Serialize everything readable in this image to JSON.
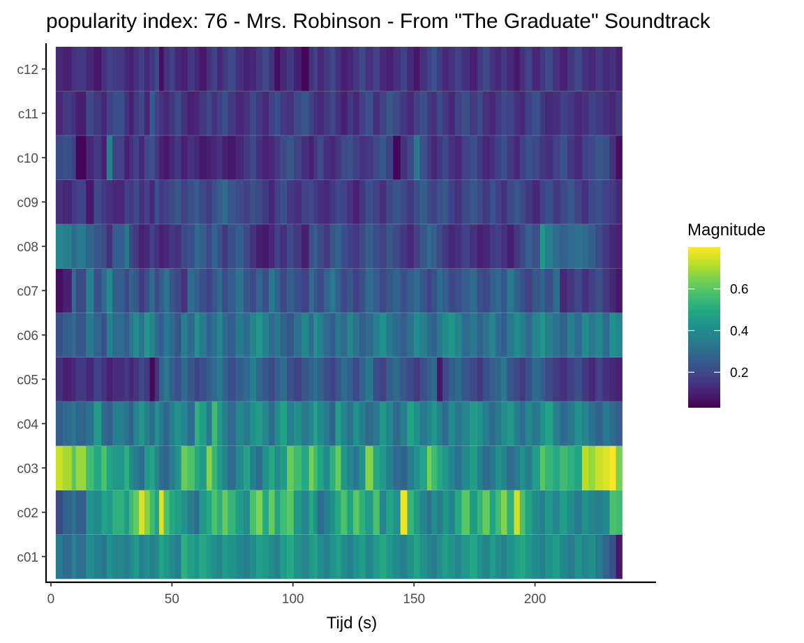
{
  "chart_data": {
    "type": "heatmap",
    "title": "popularity index:  76  -  Mrs. Robinson - From \"The Graduate\" Soundtrack",
    "xlabel": "Tijd (s)",
    "ylabel": "",
    "xlim": [
      -2,
      250
    ],
    "x_ticks": [
      0,
      50,
      100,
      150,
      200
    ],
    "x_tick_labels": [
      "0",
      "50",
      "100",
      "150",
      "200"
    ],
    "segment_boundaries": [
      2.0,
      4.9,
      8.6,
      10.3,
      14.5,
      17.7,
      20.9,
      23.0,
      25.4,
      30.4,
      32.3,
      34.1,
      36.4,
      38.6,
      40.8,
      42.9,
      44.7,
      46.6,
      48.9,
      51.2,
      53.8,
      56.4,
      59.4,
      61.3,
      64.3,
      66.5,
      68.7,
      70.8,
      73.0,
      76.3,
      79.6,
      82.2,
      84.8,
      87.4,
      90.0,
      92.4,
      94.7,
      97.5,
      100.3,
      103.5,
      106.6,
      108.5,
      110.1,
      112.7,
      115.2,
      117.5,
      119.8,
      122.4,
      124.9,
      127.4,
      129.9,
      133.1,
      135.8,
      138.5,
      141.4,
      144.4,
      147.2,
      149.9,
      152.4,
      155.4,
      157.2,
      159.5,
      161.8,
      164.2,
      166.9,
      169.7,
      173.0,
      176.1,
      178.4,
      181.3,
      183.6,
      186.0,
      188.4,
      191.3,
      193.7,
      195.9,
      198.8,
      202.1,
      204.1,
      207.4,
      210.3,
      213.3,
      216.4,
      219.4,
      222.1,
      224.9,
      228.0,
      230.8,
      233.4,
      236.0
    ],
    "categories": [
      "c01",
      "c02",
      "c03",
      "c04",
      "c05",
      "c06",
      "c07",
      "c08",
      "c09",
      "c10",
      "c11",
      "c12"
    ],
    "values": [
      [
        0.34,
        0.3,
        0.38,
        0.32,
        0.4,
        0.36,
        0.33,
        0.42,
        0.38,
        0.35,
        0.4,
        0.45,
        0.37,
        0.41,
        0.36,
        0.39,
        0.48,
        0.44,
        0.4,
        0.36,
        0.52,
        0.47,
        0.43,
        0.5,
        0.45,
        0.41,
        0.38,
        0.46,
        0.43,
        0.39,
        0.35,
        0.41,
        0.47,
        0.44,
        0.4,
        0.37,
        0.45,
        0.5,
        0.42,
        0.38,
        0.44,
        0.48,
        0.41,
        0.36,
        0.43,
        0.47,
        0.4,
        0.37,
        0.42,
        0.46,
        0.39,
        0.45,
        0.5,
        0.44,
        0.4,
        0.36,
        0.43,
        0.48,
        0.42,
        0.38,
        0.35,
        0.41,
        0.46,
        0.43,
        0.39,
        0.44,
        0.49,
        0.42,
        0.38,
        0.45,
        0.41,
        0.37,
        0.43,
        0.47,
        0.5,
        0.44,
        0.4,
        0.36,
        0.42,
        0.46,
        0.39,
        0.35,
        0.43,
        0.38,
        0.41,
        0.34,
        0.28,
        0.22,
        0.08
      ],
      [
        0.2,
        0.28,
        0.32,
        0.26,
        0.43,
        0.4,
        0.48,
        0.45,
        0.52,
        0.46,
        0.56,
        0.62,
        0.76,
        0.66,
        0.56,
        0.48,
        0.76,
        0.58,
        0.5,
        0.46,
        0.42,
        0.35,
        0.3,
        0.44,
        0.5,
        0.58,
        0.52,
        0.62,
        0.54,
        0.46,
        0.4,
        0.58,
        0.65,
        0.5,
        0.62,
        0.48,
        0.56,
        0.6,
        0.44,
        0.38,
        0.5,
        0.42,
        0.3,
        0.36,
        0.42,
        0.5,
        0.58,
        0.48,
        0.6,
        0.52,
        0.45,
        0.58,
        0.38,
        0.48,
        0.42,
        0.78,
        0.54,
        0.46,
        0.38,
        0.32,
        0.4,
        0.35,
        0.44,
        0.38,
        0.5,
        0.6,
        0.46,
        0.54,
        0.62,
        0.48,
        0.56,
        0.66,
        0.52,
        0.74,
        0.58,
        0.48,
        0.4,
        0.36,
        0.44,
        0.38,
        0.46,
        0.4,
        0.34,
        0.42,
        0.38,
        0.36,
        0.4,
        0.58,
        0.56
      ],
      [
        0.74,
        0.7,
        0.6,
        0.68,
        0.56,
        0.5,
        0.58,
        0.48,
        0.44,
        0.52,
        0.4,
        0.35,
        0.3,
        0.44,
        0.48,
        0.38,
        0.3,
        0.28,
        0.35,
        0.42,
        0.62,
        0.58,
        0.5,
        0.46,
        0.66,
        0.54,
        0.44,
        0.38,
        0.3,
        0.4,
        0.48,
        0.36,
        0.3,
        0.42,
        0.5,
        0.4,
        0.46,
        0.62,
        0.56,
        0.5,
        0.64,
        0.56,
        0.48,
        0.4,
        0.52,
        0.62,
        0.44,
        0.38,
        0.34,
        0.42,
        0.66,
        0.5,
        0.44,
        0.36,
        0.3,
        0.28,
        0.35,
        0.42,
        0.48,
        0.64,
        0.56,
        0.5,
        0.44,
        0.38,
        0.32,
        0.4,
        0.46,
        0.36,
        0.3,
        0.34,
        0.42,
        0.38,
        0.3,
        0.34,
        0.42,
        0.36,
        0.46,
        0.6,
        0.54,
        0.5,
        0.56,
        0.52,
        0.48,
        0.72,
        0.68,
        0.74,
        0.76,
        0.8,
        0.64
      ],
      [
        0.26,
        0.3,
        0.34,
        0.28,
        0.32,
        0.45,
        0.3,
        0.26,
        0.36,
        0.32,
        0.28,
        0.38,
        0.44,
        0.36,
        0.3,
        0.42,
        0.34,
        0.28,
        0.36,
        0.42,
        0.38,
        0.3,
        0.52,
        0.46,
        0.34,
        0.56,
        0.44,
        0.36,
        0.3,
        0.38,
        0.34,
        0.42,
        0.46,
        0.38,
        0.3,
        0.4,
        0.48,
        0.36,
        0.42,
        0.34,
        0.38,
        0.48,
        0.4,
        0.34,
        0.28,
        0.46,
        0.38,
        0.32,
        0.42,
        0.36,
        0.3,
        0.34,
        0.44,
        0.38,
        0.3,
        0.36,
        0.48,
        0.42,
        0.34,
        0.38,
        0.44,
        0.36,
        0.3,
        0.4,
        0.34,
        0.38,
        0.46,
        0.42,
        0.36,
        0.3,
        0.34,
        0.4,
        0.44,
        0.36,
        0.3,
        0.38,
        0.34,
        0.42,
        0.48,
        0.36,
        0.3,
        0.34,
        0.42,
        0.38,
        0.32,
        0.28,
        0.34,
        0.3,
        0.26
      ],
      [
        0.14,
        0.1,
        0.12,
        0.16,
        0.12,
        0.18,
        0.14,
        0.1,
        0.13,
        0.16,
        0.12,
        0.15,
        0.2,
        0.16,
        0.05,
        0.14,
        0.28,
        0.34,
        0.26,
        0.22,
        0.3,
        0.24,
        0.18,
        0.22,
        0.26,
        0.3,
        0.34,
        0.28,
        0.22,
        0.26,
        0.3,
        0.36,
        0.28,
        0.24,
        0.2,
        0.26,
        0.3,
        0.22,
        0.18,
        0.24,
        0.28,
        0.32,
        0.26,
        0.22,
        0.18,
        0.24,
        0.3,
        0.26,
        0.2,
        0.28,
        0.34,
        0.22,
        0.18,
        0.26,
        0.3,
        0.24,
        0.2,
        0.16,
        0.22,
        0.26,
        0.3,
        0.08,
        0.2,
        0.26,
        0.3,
        0.24,
        0.2,
        0.16,
        0.22,
        0.26,
        0.28,
        0.34,
        0.24,
        0.2,
        0.16,
        0.22,
        0.3,
        0.26,
        0.2,
        0.16,
        0.14,
        0.18,
        0.22,
        0.16,
        0.12,
        0.18,
        0.14,
        0.12,
        0.1
      ],
      [
        0.22,
        0.26,
        0.3,
        0.24,
        0.34,
        0.28,
        0.22,
        0.36,
        0.3,
        0.26,
        0.34,
        0.4,
        0.32,
        0.44,
        0.38,
        0.3,
        0.26,
        0.34,
        0.3,
        0.24,
        0.36,
        0.3,
        0.42,
        0.34,
        0.28,
        0.32,
        0.38,
        0.3,
        0.26,
        0.34,
        0.3,
        0.38,
        0.44,
        0.36,
        0.3,
        0.34,
        0.28,
        0.24,
        0.32,
        0.38,
        0.3,
        0.42,
        0.36,
        0.3,
        0.26,
        0.34,
        0.3,
        0.38,
        0.32,
        0.26,
        0.3,
        0.36,
        0.42,
        0.34,
        0.3,
        0.26,
        0.32,
        0.4,
        0.36,
        0.3,
        0.28,
        0.34,
        0.4,
        0.44,
        0.38,
        0.3,
        0.34,
        0.28,
        0.32,
        0.38,
        0.3,
        0.26,
        0.34,
        0.4,
        0.36,
        0.3,
        0.38,
        0.44,
        0.36,
        0.32,
        0.28,
        0.36,
        0.3,
        0.4,
        0.34,
        0.38,
        0.3,
        0.42,
        0.38
      ],
      [
        0.06,
        0.1,
        0.3,
        0.2,
        0.36,
        0.22,
        0.3,
        0.4,
        0.26,
        0.2,
        0.28,
        0.24,
        0.16,
        0.22,
        0.3,
        0.2,
        0.26,
        0.32,
        0.24,
        0.2,
        0.14,
        0.3,
        0.26,
        0.22,
        0.18,
        0.24,
        0.3,
        0.2,
        0.26,
        0.32,
        0.24,
        0.2,
        0.28,
        0.22,
        0.34,
        0.28,
        0.2,
        0.26,
        0.22,
        0.18,
        0.3,
        0.24,
        0.2,
        0.28,
        0.34,
        0.26,
        0.2,
        0.24,
        0.18,
        0.22,
        0.3,
        0.26,
        0.2,
        0.24,
        0.28,
        0.22,
        0.26,
        0.3,
        0.24,
        0.18,
        0.22,
        0.3,
        0.26,
        0.2,
        0.22,
        0.26,
        0.3,
        0.22,
        0.2,
        0.26,
        0.3,
        0.24,
        0.34,
        0.28,
        0.22,
        0.18,
        0.24,
        0.28,
        0.22,
        0.3,
        0.12,
        0.16,
        0.2,
        0.14,
        0.18,
        0.22,
        0.16,
        0.12,
        0.08
      ],
      [
        0.38,
        0.36,
        0.3,
        0.34,
        0.28,
        0.24,
        0.2,
        0.14,
        0.26,
        0.34,
        0.2,
        0.16,
        0.1,
        0.12,
        0.18,
        0.14,
        0.1,
        0.12,
        0.16,
        0.14,
        0.2,
        0.22,
        0.3,
        0.26,
        0.2,
        0.28,
        0.22,
        0.16,
        0.22,
        0.26,
        0.2,
        0.14,
        0.1,
        0.08,
        0.12,
        0.18,
        0.14,
        0.2,
        0.16,
        0.1,
        0.22,
        0.26,
        0.2,
        0.16,
        0.24,
        0.28,
        0.22,
        0.18,
        0.16,
        0.2,
        0.26,
        0.22,
        0.18,
        0.24,
        0.2,
        0.16,
        0.12,
        0.18,
        0.24,
        0.3,
        0.26,
        0.2,
        0.16,
        0.12,
        0.14,
        0.18,
        0.14,
        0.1,
        0.12,
        0.16,
        0.18,
        0.14,
        0.1,
        0.16,
        0.2,
        0.26,
        0.22,
        0.44,
        0.36,
        0.3,
        0.28,
        0.3,
        0.32,
        0.3,
        0.26,
        0.2,
        0.16,
        0.12,
        0.1
      ],
      [
        0.14,
        0.12,
        0.16,
        0.18,
        0.08,
        0.2,
        0.16,
        0.14,
        0.12,
        0.18,
        0.16,
        0.2,
        0.14,
        0.18,
        0.12,
        0.22,
        0.16,
        0.18,
        0.2,
        0.24,
        0.18,
        0.22,
        0.26,
        0.2,
        0.16,
        0.22,
        0.26,
        0.3,
        0.24,
        0.2,
        0.18,
        0.22,
        0.2,
        0.16,
        0.12,
        0.18,
        0.22,
        0.16,
        0.14,
        0.18,
        0.2,
        0.16,
        0.14,
        0.12,
        0.16,
        0.2,
        0.18,
        0.14,
        0.1,
        0.16,
        0.22,
        0.18,
        0.14,
        0.2,
        0.24,
        0.2,
        0.16,
        0.22,
        0.26,
        0.2,
        0.18,
        0.22,
        0.24,
        0.18,
        0.14,
        0.2,
        0.24,
        0.2,
        0.16,
        0.22,
        0.18,
        0.14,
        0.2,
        0.24,
        0.2,
        0.16,
        0.12,
        0.18,
        0.22,
        0.16,
        0.2,
        0.24,
        0.18,
        0.14,
        0.2,
        0.22,
        0.18,
        0.16,
        0.12
      ],
      [
        0.2,
        0.22,
        0.18,
        0.04,
        0.12,
        0.16,
        0.1,
        0.36,
        0.18,
        0.1,
        0.14,
        0.18,
        0.12,
        0.2,
        0.22,
        0.16,
        0.1,
        0.08,
        0.12,
        0.16,
        0.1,
        0.14,
        0.12,
        0.08,
        0.1,
        0.12,
        0.14,
        0.1,
        0.08,
        0.12,
        0.16,
        0.2,
        0.14,
        0.1,
        0.12,
        0.16,
        0.2,
        0.24,
        0.18,
        0.14,
        0.1,
        0.16,
        0.2,
        0.14,
        0.12,
        0.16,
        0.2,
        0.22,
        0.18,
        0.14,
        0.16,
        0.2,
        0.24,
        0.18,
        0.04,
        0.14,
        0.2,
        0.34,
        0.22,
        0.16,
        0.12,
        0.16,
        0.2,
        0.14,
        0.12,
        0.18,
        0.22,
        0.16,
        0.12,
        0.14,
        0.18,
        0.22,
        0.16,
        0.12,
        0.18,
        0.22,
        0.2,
        0.16,
        0.14,
        0.18,
        0.22,
        0.16,
        0.12,
        0.18,
        0.2,
        0.24,
        0.22,
        0.14,
        0.06
      ],
      [
        0.12,
        0.16,
        0.14,
        0.1,
        0.2,
        0.16,
        0.12,
        0.18,
        0.22,
        0.14,
        0.1,
        0.16,
        0.2,
        0.12,
        0.26,
        0.18,
        0.14,
        0.12,
        0.16,
        0.2,
        0.14,
        0.1,
        0.12,
        0.16,
        0.2,
        0.14,
        0.18,
        0.22,
        0.16,
        0.12,
        0.14,
        0.2,
        0.16,
        0.12,
        0.18,
        0.22,
        0.16,
        0.14,
        0.2,
        0.24,
        0.18,
        0.14,
        0.12,
        0.16,
        0.2,
        0.14,
        0.1,
        0.16,
        0.12,
        0.18,
        0.22,
        0.14,
        0.18,
        0.24,
        0.2,
        0.16,
        0.12,
        0.18,
        0.22,
        0.16,
        0.14,
        0.2,
        0.16,
        0.12,
        0.18,
        0.22,
        0.16,
        0.2,
        0.14,
        0.12,
        0.16,
        0.2,
        0.18,
        0.14,
        0.12,
        0.18,
        0.22,
        0.16,
        0.12,
        0.14,
        0.18,
        0.16,
        0.12,
        0.14,
        0.18,
        0.16,
        0.14,
        0.12,
        0.16
      ],
      [
        0.12,
        0.1,
        0.14,
        0.16,
        0.12,
        0.08,
        0.14,
        0.18,
        0.16,
        0.12,
        0.1,
        0.14,
        0.18,
        0.12,
        0.16,
        0.2,
        0.06,
        0.14,
        0.18,
        0.12,
        0.1,
        0.16,
        0.12,
        0.08,
        0.14,
        0.18,
        0.12,
        0.16,
        0.2,
        0.14,
        0.1,
        0.12,
        0.16,
        0.2,
        0.14,
        0.06,
        0.12,
        0.16,
        0.1,
        0.04,
        0.14,
        0.18,
        0.12,
        0.16,
        0.2,
        0.14,
        0.1,
        0.12,
        0.16,
        0.2,
        0.14,
        0.18,
        0.12,
        0.1,
        0.14,
        0.18,
        0.12,
        0.08,
        0.14,
        0.18,
        0.22,
        0.16,
        0.12,
        0.14,
        0.18,
        0.14,
        0.1,
        0.16,
        0.2,
        0.14,
        0.12,
        0.16,
        0.12,
        0.08,
        0.14,
        0.18,
        0.12,
        0.16,
        0.2,
        0.14,
        0.1,
        0.16,
        0.2,
        0.14,
        0.12,
        0.16,
        0.12,
        0.14,
        0.1
      ]
    ],
    "legend": {
      "title": "Magnitude",
      "placement": "right",
      "ticks": [
        0.2,
        0.4,
        0.6
      ],
      "tick_labels": [
        "0.2",
        "0.4",
        "0.6"
      ],
      "range": [
        0.03,
        0.8
      ],
      "colormap": "viridis"
    },
    "grid": false
  }
}
